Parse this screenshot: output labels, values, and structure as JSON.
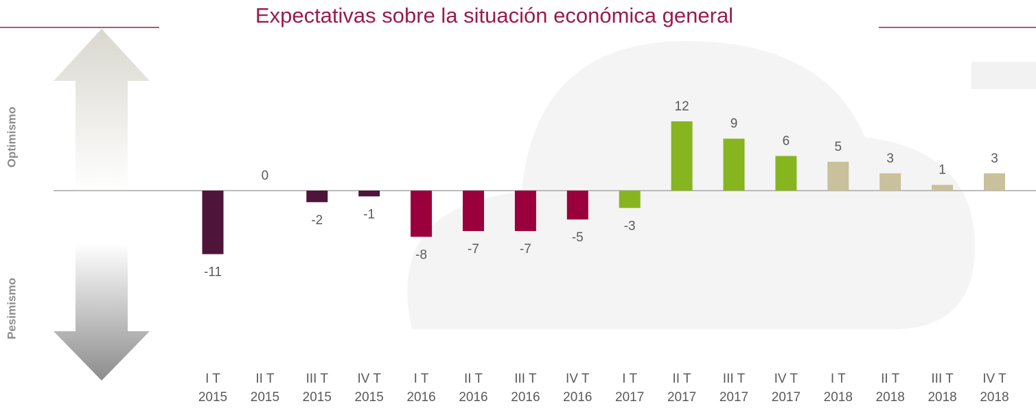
{
  "chart_data": {
    "type": "bar",
    "title": "Expectativas sobre la situación económica general",
    "top_label": "Optimismo",
    "bottom_label": "Pesimismo",
    "categories": [
      [
        "I T",
        "2015"
      ],
      [
        "II T",
        "2015"
      ],
      [
        "III T",
        "2015"
      ],
      [
        "IV T",
        "2015"
      ],
      [
        "I T",
        "2016"
      ],
      [
        "II T",
        "2016"
      ],
      [
        "III T",
        "2016"
      ],
      [
        "IV T",
        "2016"
      ],
      [
        "I T",
        "2017"
      ],
      [
        "II T",
        "2017"
      ],
      [
        "III T",
        "2017"
      ],
      [
        "IV T",
        "2017"
      ],
      [
        "I T",
        "2018"
      ],
      [
        "II T",
        "2018"
      ],
      [
        "III T",
        "2018"
      ],
      [
        "IV T",
        "2018"
      ]
    ],
    "values": [
      -11,
      0,
      -2,
      -1,
      -8,
      -7,
      -7,
      -5,
      -3,
      12,
      9,
      6,
      5,
      3,
      1,
      3
    ],
    "colors": [
      "#4e1439",
      "#4e1439",
      "#4e1439",
      "#4e1439",
      "#9a003c",
      "#9a003c",
      "#9a003c",
      "#9a003c",
      "#86b520",
      "#86b520",
      "#86b520",
      "#86b520",
      "#c9c09c",
      "#c9c09c",
      "#c9c09c",
      "#c9c09c"
    ]
  }
}
